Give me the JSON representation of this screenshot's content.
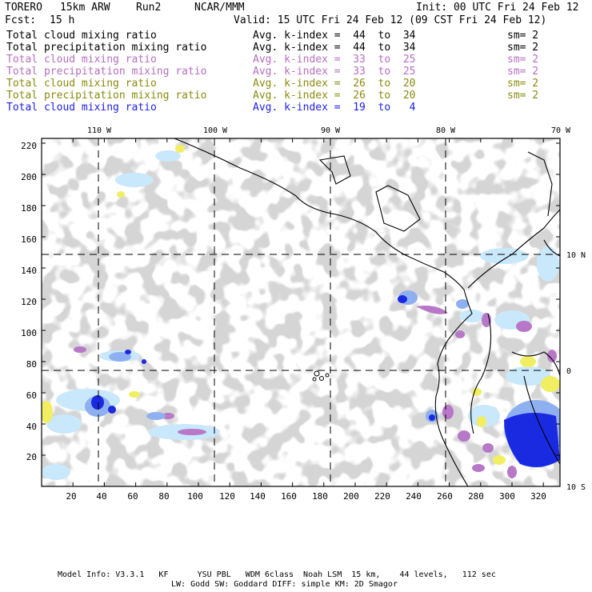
{
  "header": {
    "model": "TORERO",
    "resolution": "15km ARW",
    "run": "Run2",
    "org": "NCAR/MMM",
    "init": "Init: 00 UTC Fri 24 Feb 12",
    "fcst_label": "Fcst:",
    "fcst_value": "15 h",
    "valid": "Valid: 15 UTC Fri 24 Feb 12 (09 CST Fri 24 Feb 12)"
  },
  "legend": [
    {
      "field": "Total cloud mixing ratio",
      "kindex": "Avg. k-index =  44  to  34",
      "sm": "sm= 2",
      "color": "#000000"
    },
    {
      "field": "Total precipitation mixing ratio",
      "kindex": "Avg. k-index =  44  to  34",
      "sm": "sm= 2",
      "color": "#000000"
    },
    {
      "field": "Total cloud mixing ratio",
      "kindex": "Avg. k-index =  33  to  25",
      "sm": "sm= 2",
      "color": "#b46fc0"
    },
    {
      "field": "Total precipitation mixing ratio",
      "kindex": "Avg. k-index =  33  to  25",
      "sm": "sm= 2",
      "color": "#b46fc0"
    },
    {
      "field": "Total cloud mixing ratio",
      "kindex": "Avg. k-index =  26  to  20",
      "sm": "sm= 2",
      "color": "#8a8a10"
    },
    {
      "field": "Total precipitation mixing ratio",
      "kindex": "Avg. k-index =  26  to  20",
      "sm": "sm= 2",
      "color": "#8a8a10"
    },
    {
      "field": "Total cloud mixing ratio",
      "kindex": "Avg. k-index =  19  to   4",
      "sm": "",
      "color": "#1e1ee6"
    }
  ],
  "map": {
    "grid_x_ticks": [
      "20",
      "40",
      "60",
      "80",
      "100",
      "120",
      "140",
      "160",
      "180",
      "200",
      "220",
      "240",
      "260",
      "280",
      "300",
      "320"
    ],
    "grid_y_ticks": [
      "20",
      "40",
      "60",
      "80",
      "100",
      "120",
      "140",
      "160",
      "180",
      "200",
      "220"
    ],
    "lon_labels": [
      "110 W",
      "100 W",
      "90 W",
      "80 W",
      "70 W"
    ],
    "lat_labels": [
      "10 N",
      "0",
      "10 S"
    ],
    "colors": {
      "gray": "#a9a9a9",
      "light_blue": "#c9e8fb",
      "mid_blue": "#8fb0f0",
      "dark_blue": "#1a2ae0",
      "purple": "#b878c8",
      "yellow": "#f2ee62"
    }
  },
  "footer": {
    "line1": "Model Info: V3.3.1   KF      YSU PBL   WDM 6class  Noah LSM  15 km,    44 levels,   112 sec",
    "line2": "LW: Godd SW: Goddard DIFF: simple KM: 2D Smagor"
  }
}
